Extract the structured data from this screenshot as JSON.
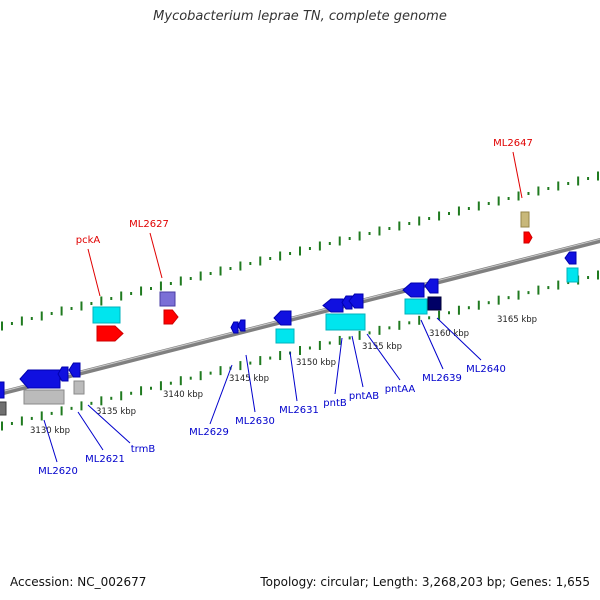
{
  "title": "Mycobacterium leprae TN, complete genome",
  "footer": {
    "accession": "Accession: NC_002677",
    "summary": "Topology: circular; Length: 3,268,203 bp; Genes: 1,655"
  },
  "colors": {
    "backbone": "#808080",
    "tick": "#1f7a1f",
    "forward_label": "#e00000",
    "reverse_label": "#0000cc",
    "gene_blue": "#1010e0",
    "gene_cyan": "#00e5ee",
    "gene_red": "#ff0000",
    "gene_purple": "#7b6fd6",
    "gene_tan": "#c8b87a",
    "gene_navy": "#000066",
    "gene_grey": "#bbbbbb"
  },
  "ruler": [
    {
      "label": "3130 kbp"
    },
    {
      "label": "3135 kbp"
    },
    {
      "label": "3140 kbp"
    },
    {
      "label": "3145 kbp"
    },
    {
      "label": "3150 kbp"
    },
    {
      "label": "3155 kbp"
    },
    {
      "label": "3160 kbp"
    },
    {
      "label": "3165 kbp"
    }
  ],
  "forward_genes": [
    {
      "name": "pckA"
    },
    {
      "name": "ML2627"
    },
    {
      "name": "ML2647"
    }
  ],
  "reverse_genes": [
    {
      "name": "ML2620"
    },
    {
      "name": "ML2621"
    },
    {
      "name": "trmB"
    },
    {
      "name": "ML2629"
    },
    {
      "name": "ML2630"
    },
    {
      "name": "ML2631"
    },
    {
      "name": "pntB"
    },
    {
      "name": "pntAB"
    },
    {
      "name": "pntAA"
    },
    {
      "name": "ML2639"
    },
    {
      "name": "ML2640"
    }
  ]
}
